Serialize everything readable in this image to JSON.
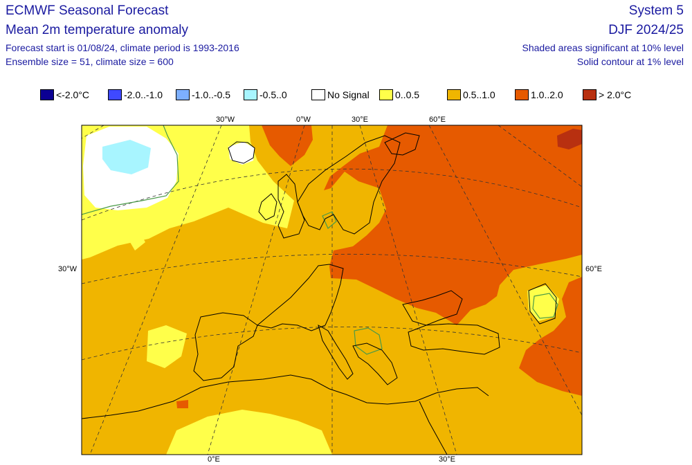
{
  "header": {
    "title": "ECMWF Seasonal Forecast",
    "subtitle": "Mean 2m temperature anomaly",
    "forecast_line": "Forecast start is 01/08/24, climate period is 1993-2016",
    "ensemble_line": "Ensemble size = 51, climate size = 600",
    "system": "System 5",
    "season": "DJF 2024/25",
    "significance_line": "Shaded areas significant at 10% level",
    "contour_line": "Solid contour at 1% level"
  },
  "legend": [
    {
      "label": "<-2.0°C",
      "color": "#0b0093"
    },
    {
      "label": "-2.0..-1.0",
      "color": "#3f49ff"
    },
    {
      "label": "-1.0..-0.5",
      "color": "#7dafff"
    },
    {
      "label": "-0.5..0",
      "color": "#a8f5ff"
    },
    {
      "label": "No Signal",
      "color": "#ffffff"
    },
    {
      "label": "0..0.5",
      "color": "#ffff4a"
    },
    {
      "label": "0.5..1.0",
      "color": "#f0b500"
    },
    {
      "label": "1.0..2.0",
      "color": "#e65a00"
    },
    {
      "label": "> 2.0°C",
      "color": "#b83010"
    }
  ],
  "graticule_labels": {
    "top": [
      "30°W",
      "0°W",
      "30°E",
      "60°E"
    ],
    "bottom": [
      "0°E",
      "30°E"
    ],
    "left": [
      "30°W"
    ],
    "right": [
      "60°E"
    ]
  }
}
